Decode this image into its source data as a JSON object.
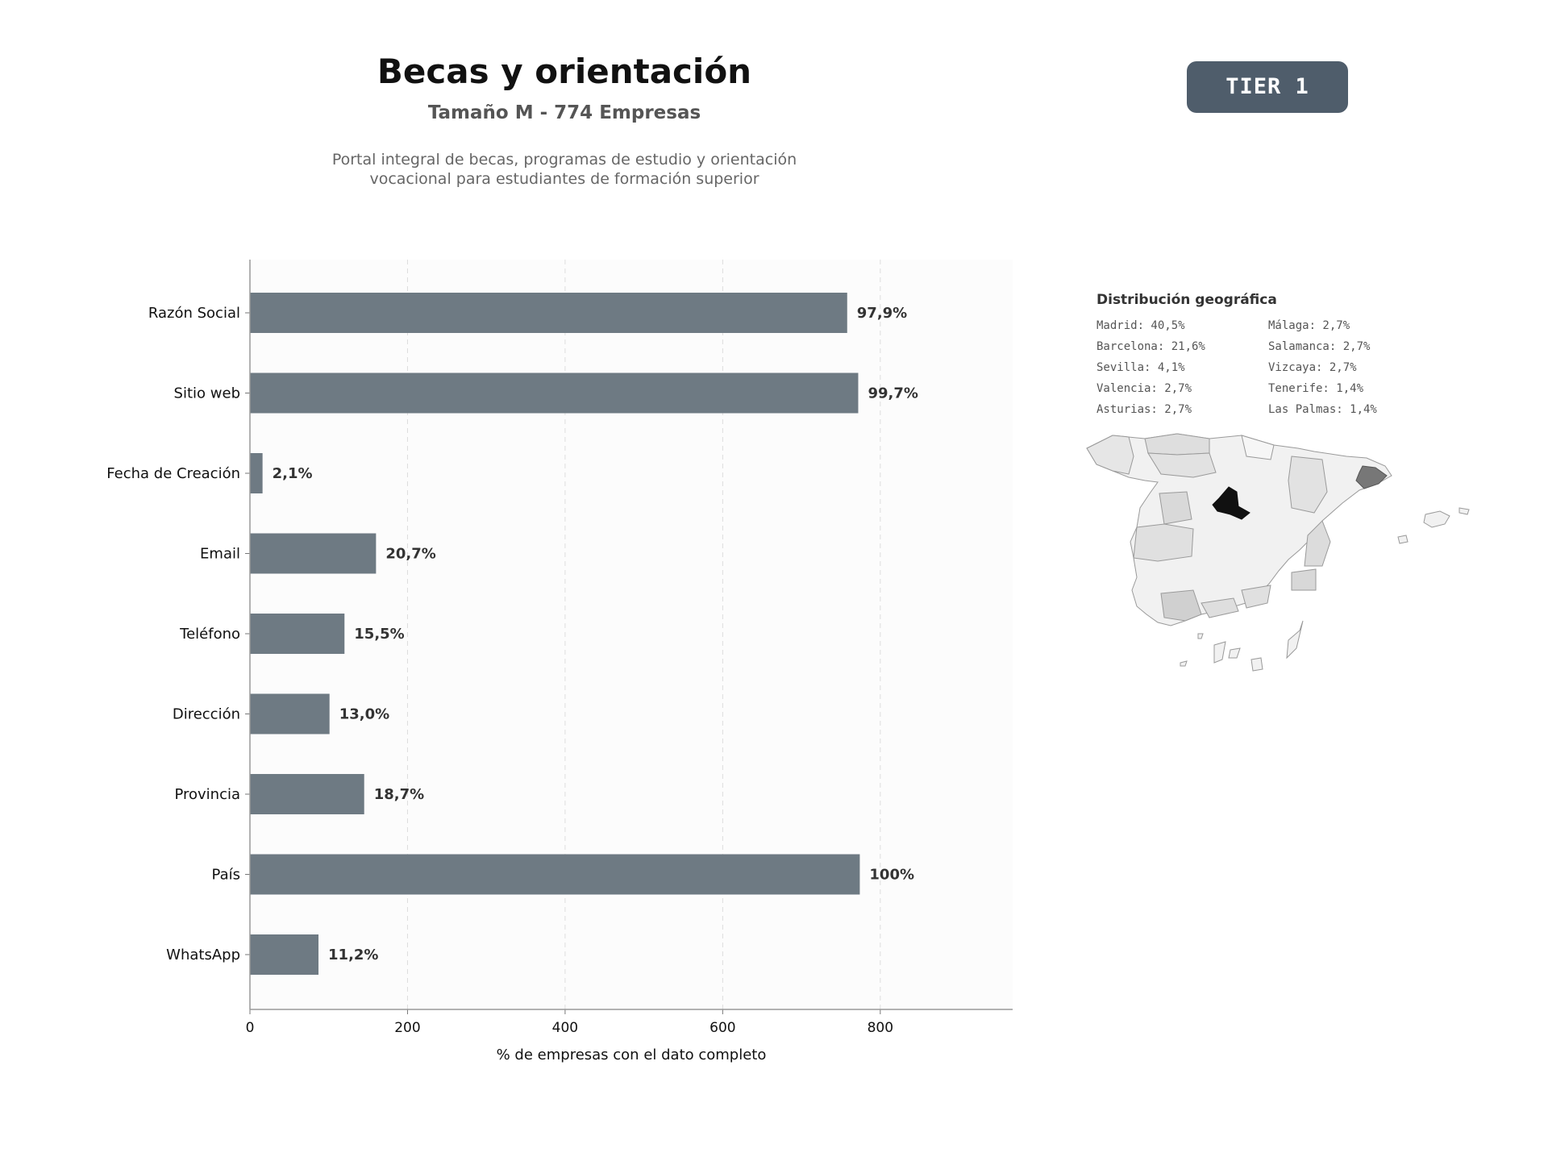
{
  "header": {
    "title": "Becas y orientación",
    "subtitle": "Tamaño M - 774 Empresas",
    "description_line1": "Portal integral de becas, programas de estudio y orientación",
    "description_line2": "vocacional para estudiantes de formación superior",
    "tier_badge": "TIER 1"
  },
  "chart_data": {
    "type": "bar",
    "orientation": "horizontal",
    "categories": [
      "Razón Social",
      "Sitio web",
      "Fecha de Creación",
      "Email",
      "Teléfono",
      "Dirección",
      "Provincia",
      "País",
      "WhatsApp"
    ],
    "values": [
      758,
      772,
      16,
      160,
      120,
      101,
      145,
      774,
      87
    ],
    "value_labels": [
      "97,9%",
      "99,7%",
      "2,1%",
      "20,7%",
      "15,5%",
      "13,0%",
      "18,7%",
      "100%",
      "11,2%"
    ],
    "xlabel": "% de empresas con el dato completo",
    "ylabel": "",
    "xlim": [
      0,
      968
    ],
    "xticks": [
      0,
      200,
      400,
      600,
      800
    ],
    "grid": true,
    "bar_color": "#6e7a83"
  },
  "geo": {
    "title": "Distribución geográfica",
    "items_left": [
      "Madrid: 40,5%",
      "Barcelona: 21,6%",
      "Sevilla: 4,1%",
      "Valencia: 2,7%",
      "Asturias: 2,7%"
    ],
    "items_right": [
      "Málaga: 2,7%",
      "Salamanca: 2,7%",
      "Vizcaya: 2,7%",
      "Tenerife: 1,4%",
      "Las Palmas: 1,4%"
    ]
  }
}
